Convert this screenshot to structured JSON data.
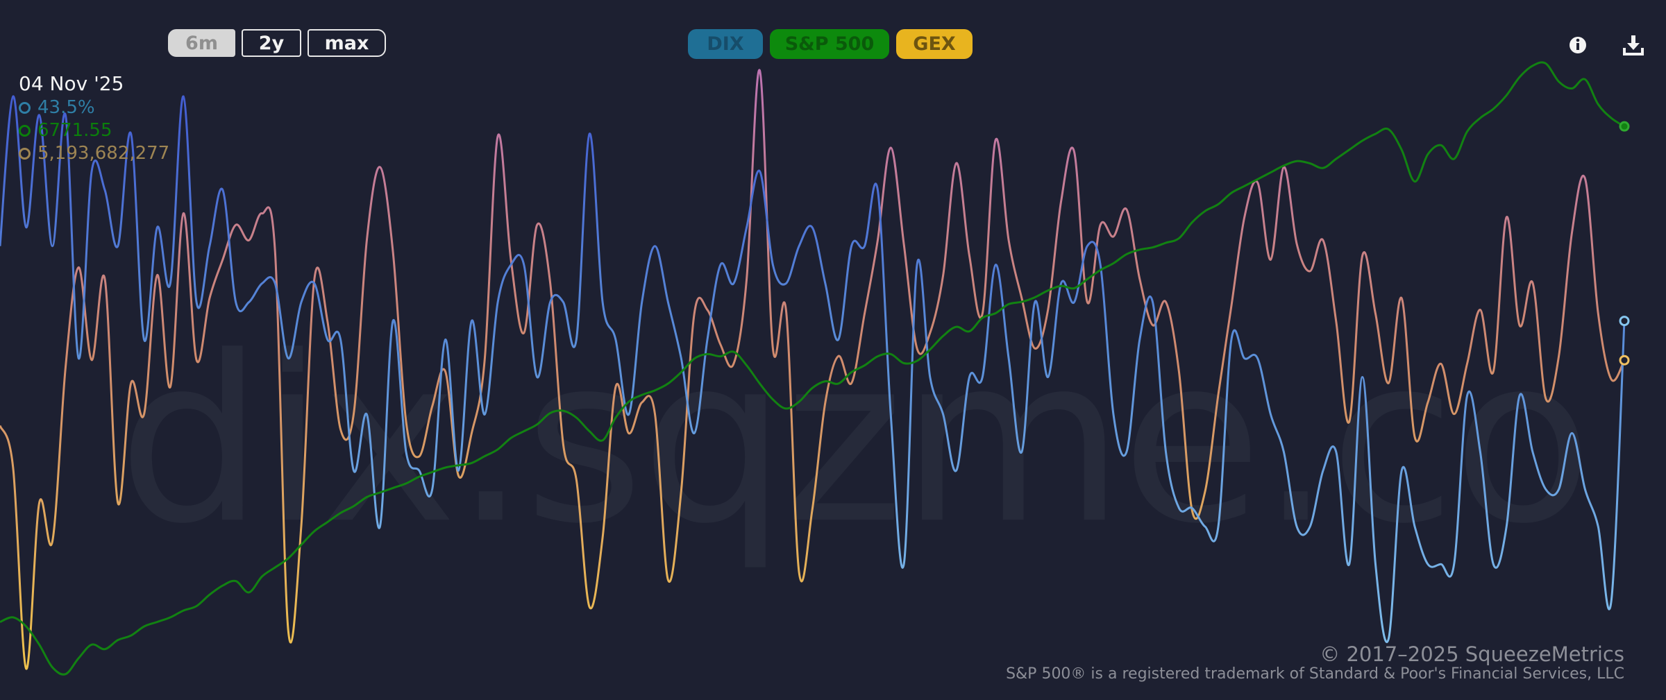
{
  "watermark": "dix.sqzme.co",
  "range_buttons": [
    {
      "label": "6m",
      "active": true
    },
    {
      "label": "2y",
      "active": false
    },
    {
      "label": "max",
      "active": false
    }
  ],
  "series_toggles": [
    {
      "label": "DIX",
      "bg": "#1f6f95",
      "fg": "#164d6a"
    },
    {
      "label": "S&P 500",
      "bg": "#0d8a0d",
      "fg": "#0a5a0a"
    },
    {
      "label": "GEX",
      "bg": "#e8b41f",
      "fg": "#6d5410"
    }
  ],
  "icons": {
    "info": "info-icon",
    "download": "download-icon"
  },
  "readout": {
    "date": "04 Nov '25",
    "dix": "43.5%",
    "spx": "6771.55",
    "gex": "5,193,682,277"
  },
  "footer": {
    "copyright": "© 2017–2025 SqueezeMetrics",
    "trademark": "S&P 500® is a registered trademark of Standard & Poor's Financial Services, LLC"
  },
  "colors": {
    "background": "#1d2031",
    "dix": "#2f7fa6",
    "spx": "#0b7f0b",
    "gex": "#9e8553"
  },
  "chart_data": {
    "type": "line",
    "x_range": [
      "May '25",
      "04 Nov '25"
    ],
    "grid": false,
    "legend": "top-center",
    "series": [
      {
        "name": "S&P 500",
        "color": "#128212",
        "scale": {
          "min": 5560,
          "max": 6920
        },
        "values": [
          5680,
          5690,
          5670,
          5630,
          5580,
          5565,
          5600,
          5630,
          5620,
          5640,
          5650,
          5670,
          5680,
          5690,
          5705,
          5715,
          5740,
          5760,
          5770,
          5745,
          5780,
          5800,
          5820,
          5850,
          5880,
          5900,
          5920,
          5935,
          5955,
          5965,
          5975,
          5985,
          6000,
          6010,
          6020,
          6025,
          6030,
          6045,
          6060,
          6085,
          6100,
          6115,
          6140,
          6145,
          6130,
          6100,
          6080,
          6130,
          6165,
          6180,
          6190,
          6205,
          6230,
          6260,
          6270,
          6265,
          6275,
          6245,
          6205,
          6170,
          6150,
          6165,
          6195,
          6210,
          6205,
          6230,
          6245,
          6265,
          6270,
          6250,
          6255,
          6280,
          6310,
          6330,
          6320,
          6350,
          6360,
          6380,
          6385,
          6395,
          6410,
          6420,
          6415,
          6435,
          6455,
          6470,
          6490,
          6500,
          6505,
          6515,
          6525,
          6560,
          6585,
          6600,
          6625,
          6640,
          6655,
          6670,
          6685,
          6695,
          6690,
          6680,
          6700,
          6720,
          6740,
          6755,
          6765,
          6720,
          6650,
          6710,
          6730,
          6700,
          6760,
          6790,
          6810,
          6840,
          6880,
          6905,
          6910,
          6870,
          6855,
          6875,
          6820,
          6790,
          6771.55
        ]
      },
      {
        "name": "DIX",
        "scale": {
          "min": 0.34,
          "max": 0.505
        },
        "colors": [
          "#3b4bd0",
          "#5a8ed8",
          "#86c6ef"
        ],
        "values": [
          0.455,
          0.495,
          0.46,
          0.49,
          0.455,
          0.49,
          0.425,
          0.475,
          0.47,
          0.455,
          0.485,
          0.43,
          0.46,
          0.445,
          0.495,
          0.44,
          0.455,
          0.47,
          0.44,
          0.44,
          0.445,
          0.445,
          0.425,
          0.44,
          0.445,
          0.43,
          0.43,
          0.395,
          0.41,
          0.38,
          0.435,
          0.4,
          0.395,
          0.39,
          0.43,
          0.395,
          0.435,
          0.41,
          0.44,
          0.45,
          0.45,
          0.42,
          0.44,
          0.44,
          0.43,
          0.485,
          0.44,
          0.43,
          0.41,
          0.44,
          0.455,
          0.44,
          0.425,
          0.405,
          0.43,
          0.45,
          0.445,
          0.46,
          0.475,
          0.45,
          0.445,
          0.455,
          0.46,
          0.445,
          0.43,
          0.455,
          0.455,
          0.47,
          0.41,
          0.37,
          0.45,
          0.42,
          0.41,
          0.395,
          0.42,
          0.42,
          0.45,
          0.425,
          0.4,
          0.44,
          0.42,
          0.445,
          0.44,
          0.455,
          0.45,
          0.41,
          0.4,
          0.43,
          0.44,
          0.4,
          0.385,
          0.385,
          0.38,
          0.38,
          0.43,
          0.425,
          0.425,
          0.41,
          0.4,
          0.38,
          0.38,
          0.395,
          0.4,
          0.37,
          0.42,
          0.37,
          0.35,
          0.395,
          0.38,
          0.37,
          0.37,
          0.37,
          0.415,
          0.4,
          0.37,
          0.38,
          0.415,
          0.4,
          0.39,
          0.39,
          0.405,
          0.39,
          0.38,
          0.36,
          0.435
        ]
      },
      {
        "name": "GEX",
        "scale": {
          "min": -3000000000,
          "max": 13000000000
        },
        "colors": [
          "#f2c84a",
          "#d08a6e",
          "#b86ec3"
        ],
        "values": [
          3500000000,
          2400000000,
          -2800000000,
          1500000000,
          500000000,
          5000000000,
          7600000000,
          5200000000,
          7300000000,
          1500000000,
          4600000000,
          3800000000,
          7400000000,
          4500000000,
          9000000000,
          5200000000,
          6800000000,
          7800000000,
          8700000000,
          8300000000,
          9000000000,
          8000000000,
          -1800000000,
          900000000,
          7300000000,
          6200000000,
          3400000000,
          3800000000,
          8300000000,
          10200000000,
          8000000000,
          3600000000,
          2700000000,
          4000000000,
          4900000000,
          2200000000,
          3300000000,
          5200000000,
          11000000000,
          7800000000,
          5900000000,
          8700000000,
          7200000000,
          3000000000,
          2100000000,
          -1200000000,
          600000000,
          4500000000,
          3300000000,
          4100000000,
          3800000000,
          -500000000,
          1800000000,
          6400000000,
          6500000000,
          5600000000,
          5100000000,
          7300000000,
          12700000000,
          5500000000,
          6500000000,
          -300000000,
          1300000000,
          4100000000,
          5300000000,
          4600000000,
          6400000000,
          8300000000,
          10700000000,
          8200000000,
          5500000000,
          5900000000,
          7400000000,
          10300000000,
          7900000000,
          6400000000,
          10900000000,
          8300000000,
          6800000000,
          5500000000,
          6500000000,
          9300000000,
          10600000000,
          6700000000,
          8700000000,
          8400000000,
          9100000000,
          7300000000,
          6100000000,
          6700000000,
          4900000000,
          1300000000,
          1800000000,
          4300000000,
          6600000000,
          8900000000,
          9800000000,
          7800000000,
          10200000000,
          8200000000,
          7500000000,
          8300000000,
          6200000000,
          3600000000,
          7900000000,
          6400000000,
          4600000000,
          6800000000,
          3200000000,
          4100000000,
          5100000000,
          3800000000,
          5100000000,
          6500000000,
          4900000000,
          8900000000,
          6100000000,
          7200000000,
          4200000000,
          5300000000,
          8500000000,
          9900000000,
          6400000000,
          4700000000,
          5193682277
        ]
      }
    ]
  }
}
